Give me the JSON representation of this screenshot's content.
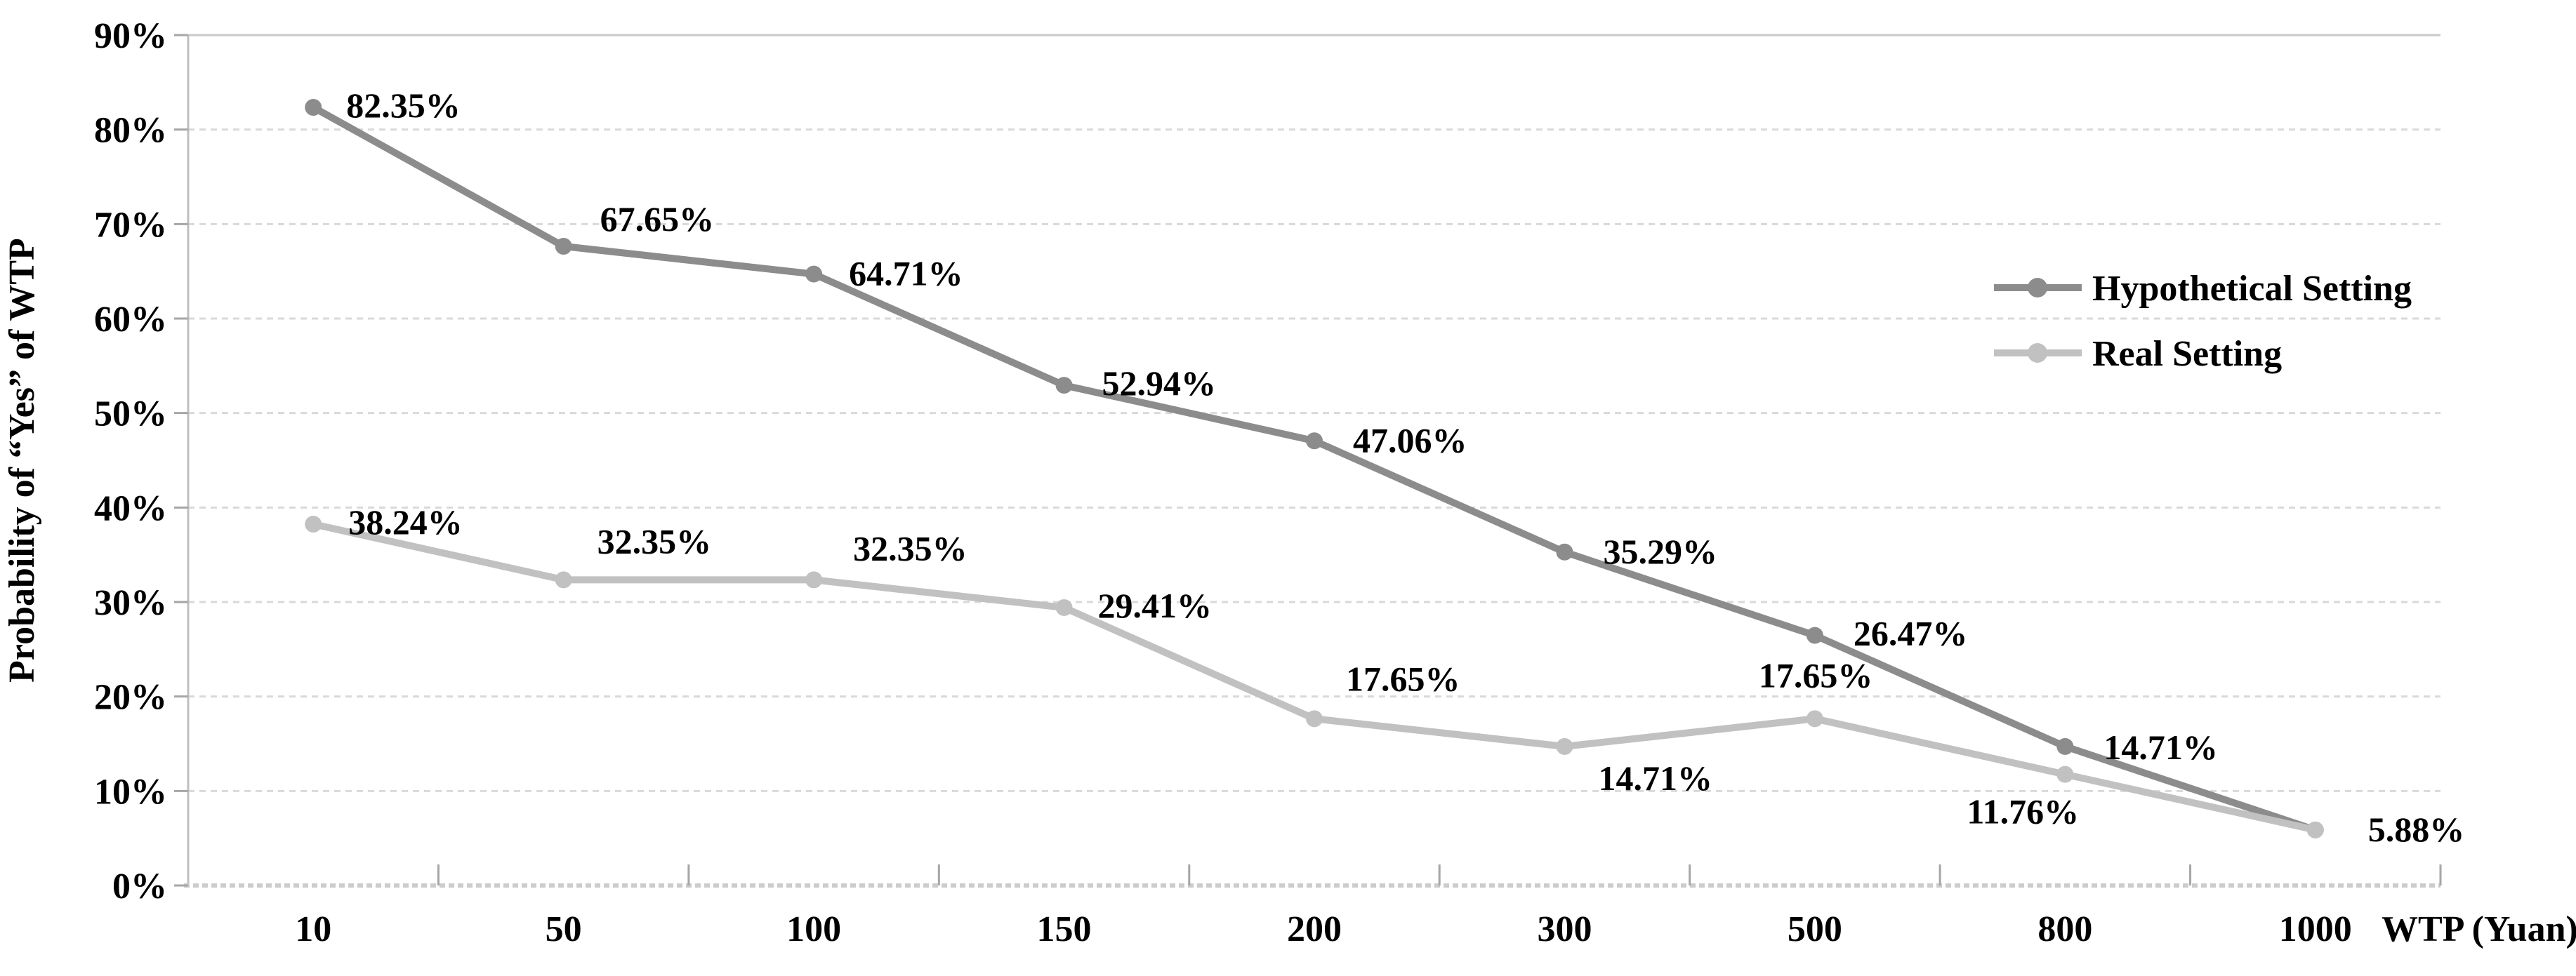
{
  "chart_data": {
    "type": "line",
    "title": "",
    "xlabel": "WTP (Yuan)",
    "ylabel": "Probability of “Yes” of WTP",
    "x_categories": [
      "10",
      "50",
      "100",
      "150",
      "200",
      "300",
      "500",
      "800",
      "1000"
    ],
    "y_ticks": [
      "0%",
      "10%",
      "20%",
      "30%",
      "40%",
      "50%",
      "60%",
      "70%",
      "80%",
      "90%"
    ],
    "ylim": [
      0,
      90
    ],
    "grid": "horizontal dashed light-gray",
    "legend_position": "right-upper",
    "background": "#ffffff",
    "series": [
      {
        "name": "Hypothetical Setting",
        "color": "#8C8C8C",
        "values": [
          82.35,
          67.65,
          64.71,
          52.94,
          47.06,
          35.29,
          26.47,
          14.71,
          5.88
        ],
        "labels": [
          "82.35%",
          "67.65%",
          "64.71%",
          "52.94%",
          "47.06%",
          "35.29%",
          "26.47%",
          "14.71%",
          "5.88%"
        ],
        "label_offsets": [
          [
            47,
            14
          ],
          [
            52,
            -22
          ],
          [
            50,
            16
          ],
          [
            54,
            14
          ],
          [
            55,
            16
          ],
          [
            55,
            16
          ],
          [
            55,
            14
          ],
          [
            55,
            18
          ],
          [
            75,
            16
          ]
        ]
      },
      {
        "name": "Real Setting",
        "color": "#C1C1C1",
        "values": [
          38.24,
          32.35,
          32.35,
          29.41,
          17.65,
          14.71,
          17.65,
          11.76,
          5.88
        ],
        "labels": [
          "38.24%",
          "32.35%",
          "32.35%",
          "29.41%",
          "17.65%",
          "14.71%",
          "17.65%",
          "11.76%",
          ""
        ],
        "label_offsets": [
          [
            50,
            14
          ],
          [
            48,
            -38
          ],
          [
            56,
            -28
          ],
          [
            48,
            14
          ],
          [
            45,
            -40
          ],
          [
            48,
            62
          ],
          [
            -80,
            -45
          ],
          [
            -140,
            70
          ],
          [
            0,
            0
          ]
        ]
      }
    ],
    "colors": {
      "gridline": "#d9d9d9",
      "top_gridline": "#c9c9c9",
      "axis_line": "#bfbfbf",
      "zero_line": "#cccccc",
      "tick": "#a6a6a6",
      "label_text": "#000000"
    }
  }
}
